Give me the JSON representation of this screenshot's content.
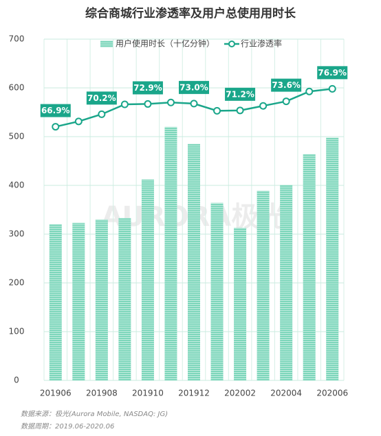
{
  "chart_data": {
    "type": "bar-line",
    "title": "综合商城行业渗透率及用户总使用用时长",
    "categories": [
      "201906",
      null,
      "201908",
      null,
      "201910",
      null,
      "201912",
      null,
      "202002",
      null,
      "202004",
      null,
      "202006"
    ],
    "series": [
      {
        "name": "用户使用时长（十亿分钟）",
        "type": "bar",
        "color": "#7dd6bb",
        "values": [
          320,
          323,
          330,
          333,
          412,
          520,
          485,
          364,
          313,
          389,
          401,
          464,
          498
        ]
      },
      {
        "name": "行业渗透率",
        "type": "line",
        "axis": "y2",
        "color": "#1aa68a",
        "values": [
          66.9,
          68.3,
          70.2,
          72.8,
          72.9,
          73.3,
          73.0,
          71.1,
          71.2,
          72.4,
          73.6,
          76.2,
          76.9
        ],
        "value_labels": [
          "66.9%",
          null,
          "70.2%",
          null,
          "72.9%",
          null,
          "73.0%",
          null,
          "71.2%",
          null,
          "73.6%",
          null,
          "76.9%"
        ]
      }
    ],
    "ylim": [
      0,
      700
    ],
    "yticks": [
      0,
      100,
      200,
      300,
      400,
      500,
      600,
      700
    ],
    "y2lim": [
      0,
      90
    ],
    "grid": true,
    "watermark": "AURORA极光",
    "source": "数据来源：极光(Aurora Mobile, NASDAQ: JG)",
    "period": "数据周期：2019.06-2020.06"
  }
}
